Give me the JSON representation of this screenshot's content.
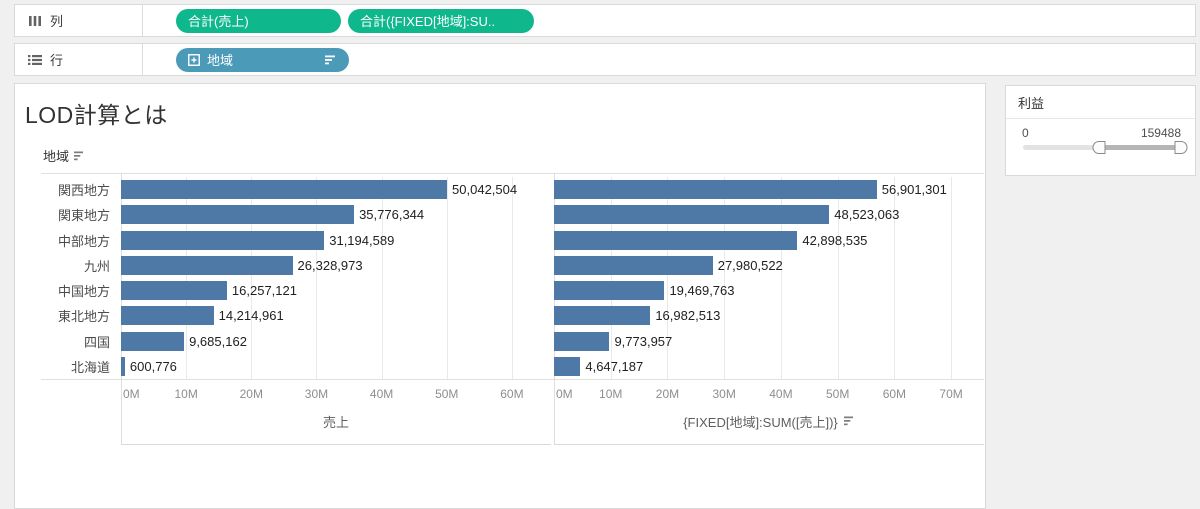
{
  "colors": {
    "measure_pill_green": "#0fb78d",
    "dimension_pill_blue": "#4a9ab8",
    "bar_blue": "#4e79a7"
  },
  "shelves": {
    "columns": {
      "label": "列",
      "pills": [
        "合計(売上)",
        "合計({FIXED[地域]:SU.."
      ]
    },
    "rows": {
      "label": "行",
      "pills": [
        "地域"
      ]
    }
  },
  "sheet": {
    "title": "LOD計算とは",
    "row_field_header": "地域"
  },
  "filter_card": {
    "title": "利益",
    "min_label": "0",
    "max_label": "159488",
    "selected_range_pct": [
      48,
      100
    ]
  },
  "chart_data": {
    "type": "bar",
    "orientation": "horizontal",
    "grid": true,
    "legend_position": "none",
    "categories": [
      "関西地方",
      "関東地方",
      "中部地方",
      "九州",
      "中国地方",
      "東北地方",
      "四国",
      "北海道"
    ],
    "series": [
      {
        "name": "売上",
        "values": [
          50042504,
          35776344,
          31194589,
          26328973,
          16257121,
          14214961,
          9685162,
          600776
        ],
        "value_labels": [
          "50,042,504",
          "35,776,344",
          "31,194,589",
          "26,328,973",
          "16,257,121",
          "14,214,961",
          "9,685,162",
          "600,776"
        ],
        "axis": {
          "ticks": [
            0,
            10000000,
            20000000,
            30000000,
            40000000,
            50000000,
            60000000
          ],
          "tick_labels": [
            "0M",
            "10M",
            "20M",
            "30M",
            "40M",
            "50M",
            "60M"
          ],
          "pane_max": 66000000
        }
      },
      {
        "name": "{FIXED[地域]:SUM([売上])}",
        "values": [
          56901301,
          48523063,
          42898535,
          27980522,
          19469763,
          16982513,
          9773957,
          4647187
        ],
        "value_labels": [
          "56,901,301",
          "48,523,063",
          "42,898,535",
          "27,980,522",
          "19,469,763",
          "16,982,513",
          "9,773,957",
          "4,647,187"
        ],
        "axis": {
          "ticks": [
            0,
            10000000,
            20000000,
            30000000,
            40000000,
            50000000,
            60000000,
            70000000
          ],
          "tick_labels": [
            "0M",
            "10M",
            "20M",
            "30M",
            "40M",
            "50M",
            "60M",
            "70M"
          ],
          "pane_max": 75800000
        }
      }
    ]
  }
}
